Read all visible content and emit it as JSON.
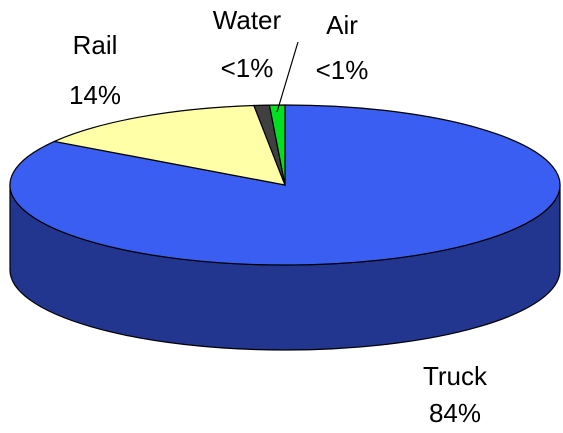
{
  "chart_data": {
    "type": "pie",
    "categories": [
      "Truck",
      "Rail",
      "Water",
      "Air"
    ],
    "values": [
      84,
      14,
      0.9,
      0.9
    ],
    "value_labels": [
      "84%",
      "14%",
      "<1%",
      "<1%"
    ],
    "colors": [
      "#3a5ef2",
      "#ffffa8",
      "#404040",
      "#00e020"
    ],
    "side_color": "#22358f"
  }
}
